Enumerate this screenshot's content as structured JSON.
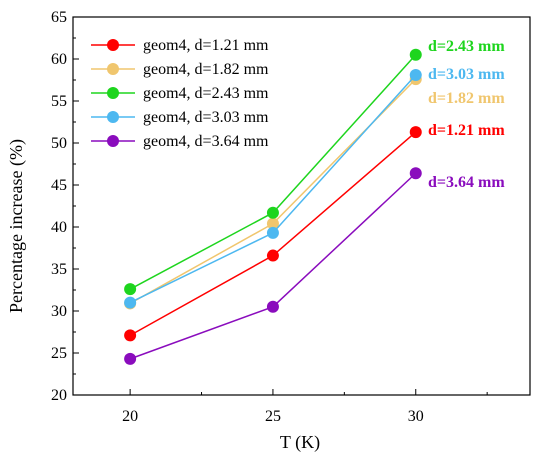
{
  "chart_data": {
    "type": "line",
    "title": "",
    "xlabel": "T (K)",
    "ylabel": "Percentage increase (%)",
    "x": [
      20,
      25,
      30
    ],
    "xlim": [
      18,
      34
    ],
    "ylim": [
      20,
      65
    ],
    "x_ticks": [
      20,
      25,
      30
    ],
    "y_ticks": [
      20,
      25,
      30,
      35,
      40,
      45,
      50,
      55,
      60,
      65
    ],
    "grid": false,
    "legend_position": "top-left",
    "series": [
      {
        "name": "geom4, d=1.21 mm",
        "color": "#ff0000",
        "values": [
          27.1,
          36.6,
          51.3
        ],
        "annotation": "d=1.21 mm"
      },
      {
        "name": "geom4, d=1.82 mm",
        "color": "#f0c66e",
        "values": [
          30.9,
          40.4,
          57.6
        ],
        "annotation": "d=1.82 mm"
      },
      {
        "name": "geom4, d=2.43 mm",
        "color": "#1ed51e",
        "values": [
          32.6,
          41.7,
          60.5
        ],
        "annotation": "d=2.43 mm"
      },
      {
        "name": "geom4, d=3.03 mm",
        "color": "#4db8f0",
        "values": [
          31.0,
          39.3,
          58.1
        ],
        "annotation": "d=3.03 mm"
      },
      {
        "name": "geom4, d=3.64 mm",
        "color": "#8a0cbd",
        "values": [
          24.3,
          30.5,
          46.4
        ],
        "annotation": "d=3.64 mm"
      }
    ]
  }
}
